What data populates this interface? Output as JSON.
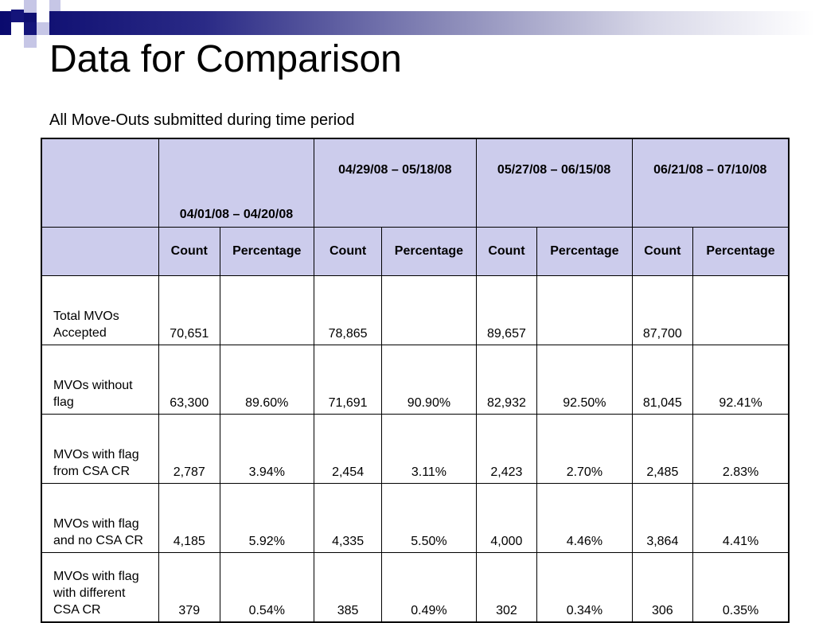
{
  "slide": {
    "title": "Data for Comparison",
    "subtitle": "All Move-Outs submitted during time period"
  },
  "table": {
    "periods": [
      "04/01/08 – 04/20/08",
      "04/29/08 – 05/18/08",
      "05/27/08 – 06/15/08",
      "06/21/08 – 07/10/08"
    ],
    "subheaders": [
      "Count",
      "Percentage",
      "Count",
      "Percentage",
      "Count",
      "Percentage",
      "Count",
      "Percentage"
    ],
    "rows": [
      {
        "label": "Total MVOs Accepted",
        "cells": [
          "70,651",
          "",
          "78,865",
          "",
          "89,657",
          "",
          "87,700",
          ""
        ]
      },
      {
        "label": "MVOs without flag",
        "cells": [
          "63,300",
          "89.60%",
          "71,691",
          "90.90%",
          "82,932",
          "92.50%",
          "81,045",
          "92.41%"
        ]
      },
      {
        "label": "MVOs with flag from CSA CR",
        "cells": [
          "2,787",
          "3.94%",
          "2,454",
          "3.11%",
          "2,423",
          "2.70%",
          "2,485",
          "2.83%"
        ]
      },
      {
        "label": "MVOs with flag and no CSA CR",
        "cells": [
          "4,185",
          "5.92%",
          "4,335",
          "5.50%",
          "4,000",
          "4.46%",
          "3,864",
          "4.41%"
        ]
      },
      {
        "label": "MVOs with flag with different CSA CR",
        "cells": [
          "379",
          "0.54%",
          "385",
          "0.49%",
          "302",
          "0.34%",
          "306",
          "0.35%"
        ]
      }
    ]
  },
  "colors": {
    "header_bg": "#ccccec",
    "banner_dark": "#0a0a6e"
  }
}
